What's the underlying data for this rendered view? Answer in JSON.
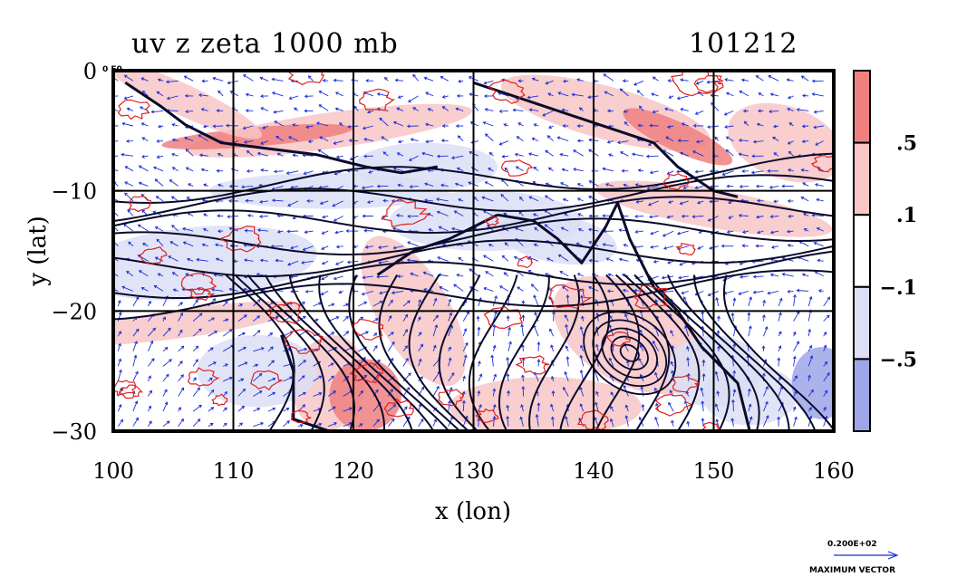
{
  "figure": {
    "title_left": "uv z zeta 1000 mb",
    "title_right": "101212",
    "corner_label": "0 E0",
    "vector_ref_value": "0.200E+02",
    "vector_ref_label": "MAXIMUM VECTOR"
  },
  "chart_data": {
    "type": "heatmap",
    "title": "uv z zeta 1000 mb",
    "date_label": "101212",
    "xlabel": "x (lon)",
    "ylabel": "y (lat)",
    "xlim": [
      100,
      160
    ],
    "ylim": [
      -30,
      0
    ],
    "x_ticks": [
      100,
      110,
      120,
      130,
      140,
      150,
      160
    ],
    "x_tick_labels": [
      "100",
      "110",
      "120",
      "130",
      "140",
      "150",
      "160"
    ],
    "y_ticks": [
      0,
      -10,
      -20,
      -30
    ],
    "y_tick_labels": [
      "0",
      "−10",
      "−20",
      "−30"
    ],
    "grid": true,
    "fields": [
      "wind vectors (uv)",
      "geopotential height contours (z)",
      "relative vorticity shading (zeta)"
    ],
    "colorbar": {
      "labels": [
        ".5",
        ".1",
        "−.1",
        "−.5"
      ],
      "label_levels": [
        0.5,
        0.1,
        -0.1,
        -0.5
      ],
      "bins": [
        {
          "range": "> .5",
          "color": "#f08080"
        },
        {
          "range": ".1 to .5",
          "color": "#f7c6c6"
        },
        {
          "range": "−.1 to .1",
          "color": "#ffffff"
        },
        {
          "range": "−.5 to −.1",
          "color": "#dcdff5"
        },
        {
          "range": "< −.5",
          "color": "#9ea6e8"
        }
      ]
    }
  },
  "colors": {
    "positive_strong": "#f08080",
    "positive_weak": "#f7c6c6",
    "neutral": "#ffffff",
    "negative_weak": "#dcdff5",
    "negative_strong": "#9ea6e8",
    "vectors": "#1a2fd6",
    "contours": "#0a0a2a",
    "vorticity_contour": "#e02020"
  }
}
